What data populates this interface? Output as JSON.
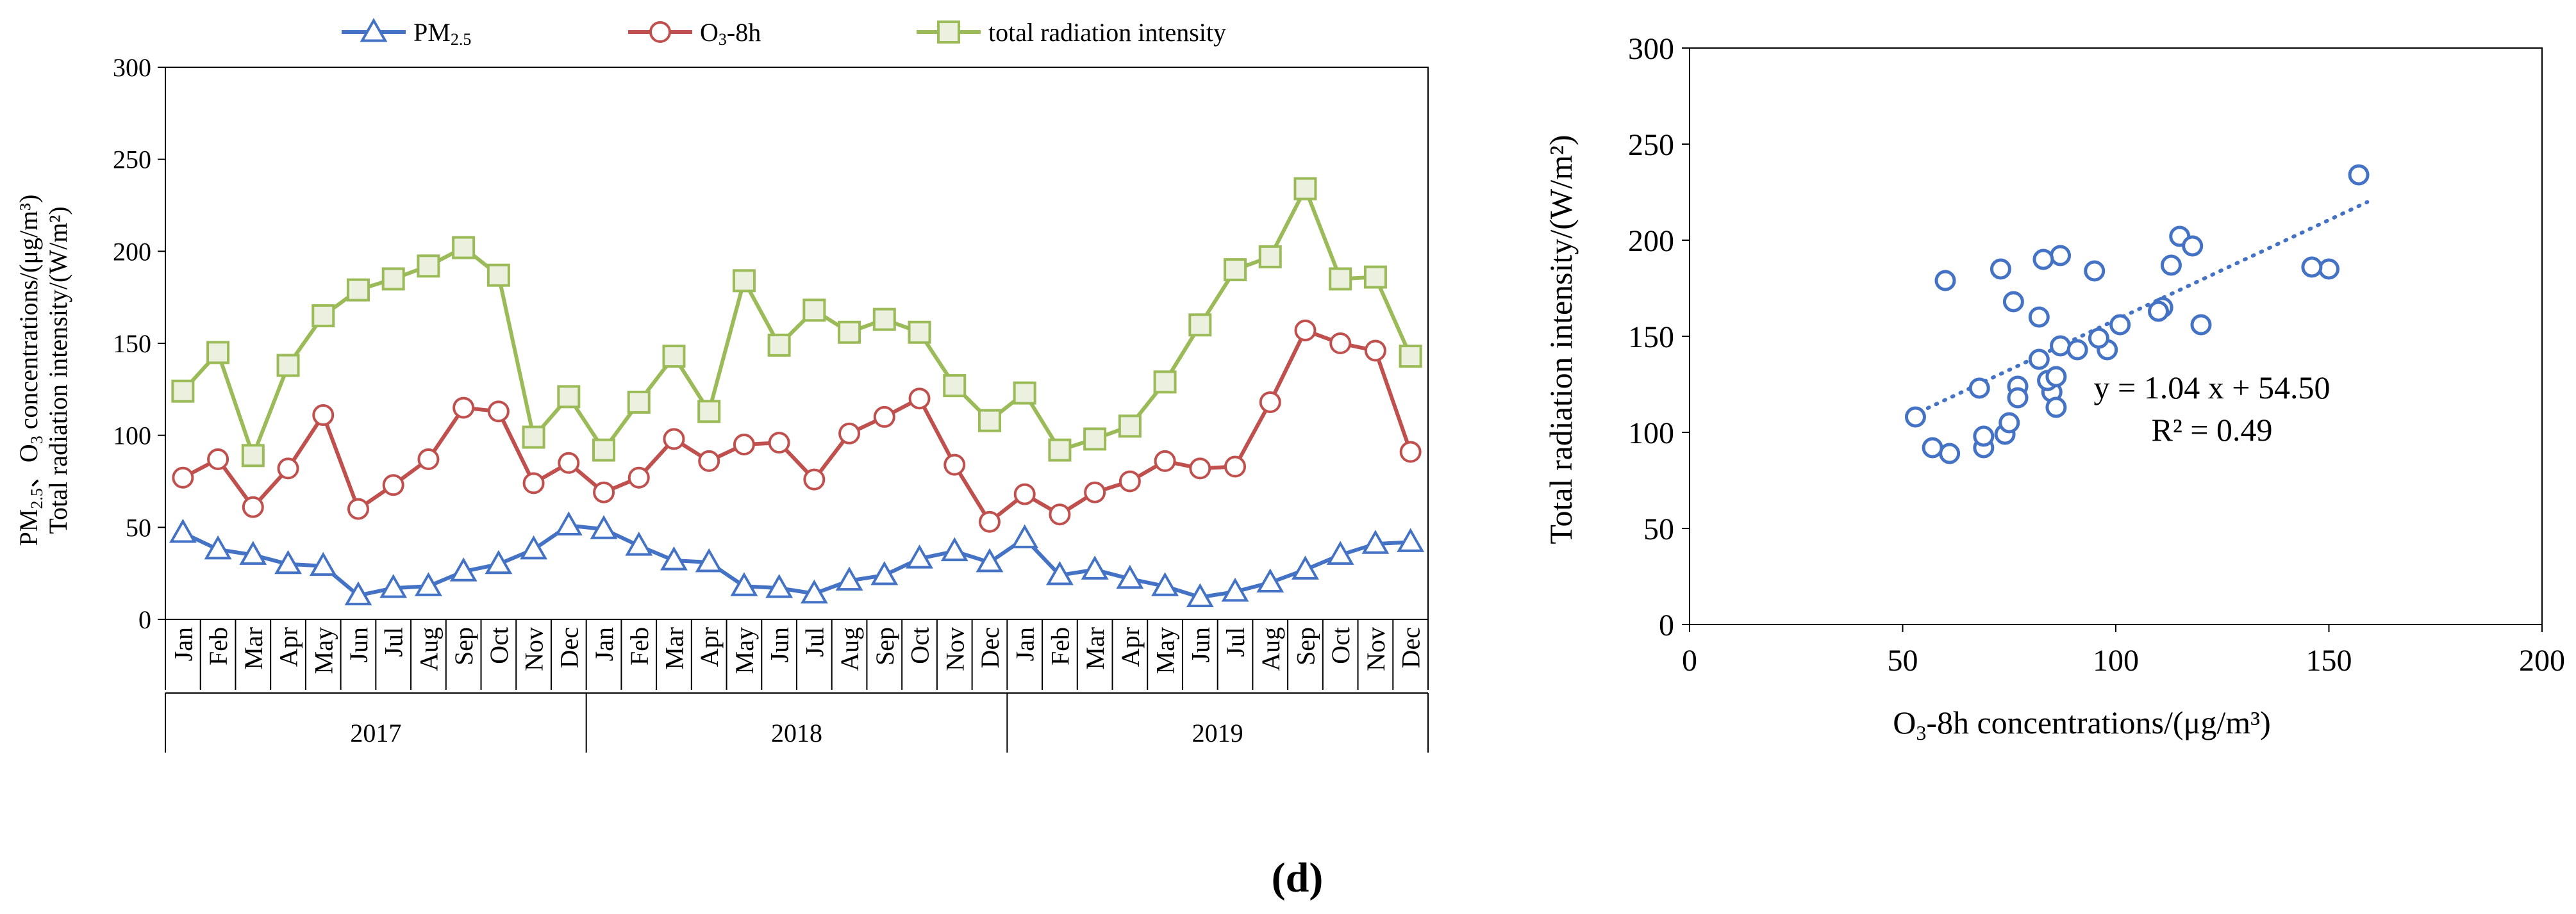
{
  "caption": "(d)",
  "chart_data": [
    {
      "type": "line",
      "ylabel_line1": "PM2.5、O3 concentrations/(μg/m³)",
      "ylabel_line2": "Total radiation intensity/(W/m²)",
      "ylim": [
        0,
        300
      ],
      "yticks": [
        0,
        50,
        100,
        150,
        200,
        250,
        300
      ],
      "months": [
        "Jan",
        "Feb",
        "Mar",
        "Apr",
        "May",
        "Jun",
        "Jul",
        "Aug",
        "Sep",
        "Oct",
        "Nov",
        "Dec"
      ],
      "years": [
        "2017",
        "2018",
        "2019"
      ],
      "legend_position": "top",
      "series": [
        {
          "name": "PM2.5",
          "color": "#4472C4",
          "marker": "triangle",
          "values": [
            47,
            38,
            35,
            30,
            29,
            13,
            17,
            18,
            26,
            30,
            38,
            51,
            49,
            40,
            32,
            31,
            18,
            17,
            14,
            21,
            24,
            33,
            37,
            31,
            44,
            24,
            27,
            22,
            18,
            12,
            15,
            20,
            27,
            35,
            41,
            42
          ]
        },
        {
          "name": "O3-8h",
          "color": "#C0504D",
          "marker": "circle",
          "values": [
            77,
            87,
            61,
            82,
            111,
            60,
            73,
            87,
            115,
            113,
            74,
            85,
            69,
            77,
            98,
            86,
            95,
            96,
            76,
            101,
            110,
            120,
            84,
            53,
            68,
            57,
            69,
            75,
            86,
            82,
            83,
            118,
            157,
            150,
            146,
            91
          ]
        },
        {
          "name": "total radiation intensity",
          "color": "#9BBB59",
          "marker": "square",
          "values": [
            124,
            145,
            89,
            138,
            165,
            179,
            185,
            192,
            202,
            187,
            99,
            121,
            92,
            118,
            143,
            113,
            184,
            149,
            168,
            156,
            163,
            156,
            127,
            108,
            123,
            92,
            98,
            105,
            129,
            160,
            190,
            197,
            234,
            185,
            186,
            143
          ]
        }
      ]
    },
    {
      "type": "scatter",
      "xlabel": "O3-8h concentrations/(μg/m³)",
      "ylabel": "Total radiation intensity/(W/m²)",
      "xlim": [
        0,
        200
      ],
      "ylim": [
        0,
        300
      ],
      "xticks": [
        0,
        50,
        100,
        150,
        200
      ],
      "yticks": [
        0,
        50,
        100,
        150,
        200,
        250,
        300
      ],
      "color": "#4472C4",
      "equation": "y = 1.04 x + 54.50",
      "r_squared": "R² = 0.49",
      "trendline": {
        "slope": 1.04,
        "intercept": 54.5,
        "x_range": [
          54,
          159
        ]
      },
      "points": [
        [
          77,
          124
        ],
        [
          87,
          145
        ],
        [
          61,
          89
        ],
        [
          82,
          138
        ],
        [
          111,
          165
        ],
        [
          60,
          179
        ],
        [
          73,
          185
        ],
        [
          87,
          192
        ],
        [
          115,
          202
        ],
        [
          113,
          187
        ],
        [
          74,
          99
        ],
        [
          85,
          121
        ],
        [
          69,
          92
        ],
        [
          77,
          118
        ],
        [
          98,
          143
        ],
        [
          86,
          113
        ],
        [
          95,
          184
        ],
        [
          96,
          149
        ],
        [
          76,
          168
        ],
        [
          101,
          156
        ],
        [
          110,
          163
        ],
        [
          120,
          156
        ],
        [
          84,
          127
        ],
        [
          53,
          108
        ],
        [
          68,
          123
        ],
        [
          57,
          92
        ],
        [
          69,
          98
        ],
        [
          75,
          105
        ],
        [
          86,
          129
        ],
        [
          82,
          160
        ],
        [
          83,
          190
        ],
        [
          118,
          197
        ],
        [
          157,
          234
        ],
        [
          150,
          185
        ],
        [
          146,
          186
        ],
        [
          91,
          143
        ]
      ]
    }
  ]
}
